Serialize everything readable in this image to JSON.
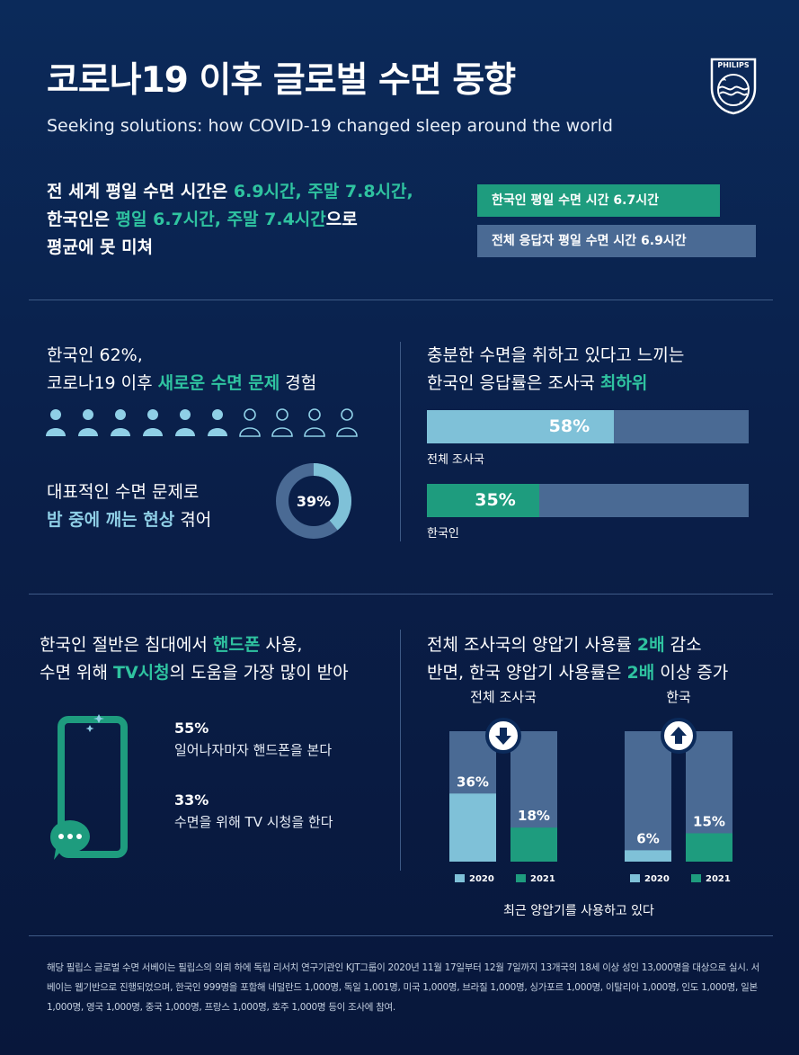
{
  "header": {
    "title": "코로나19 이후 글로벌 수면 동향",
    "subtitle": "Seeking solutions: how COVID-19 changed sleep around the world",
    "logo_text": "PHILIPS"
  },
  "section1": {
    "line1_a": "전 세계 평일 수면 시간은 ",
    "line1_b": "6.9시간, 주말 7.8시간,",
    "line2_a": "한국인은 ",
    "line2_b": "평일 6.7시간, 주말 7.4시간",
    "line2_c": "으로",
    "line3": "평균에 못 미쳐",
    "badge_korea": "한국인 평일 수면 시간  6.7시간",
    "badge_all": "전체 응답자 평일 수면 시간  6.9시간"
  },
  "section2_left": {
    "line1": "한국인 62%,",
    "line2_a": "코로나19 이후 ",
    "line2_b": "새로운 수면 문제",
    "line2_c": " 경험",
    "people_filled": 6,
    "people_total": 10,
    "problem_line1": "대표적인 수면 문제로",
    "problem_line2_a": "밤 중에 깨는 현상",
    "problem_line2_b": " 겪어",
    "donut_label": "39%",
    "donut_value": 39
  },
  "section2_right": {
    "line1": "충분한 수면을 취하고 있다고 느끼는",
    "line2_a": "한국인 응답률은 조사국 ",
    "line2_b": "최하위",
    "bars": [
      {
        "pct_label": "58%",
        "value": 58,
        "label": "전체 조사국",
        "color": "#7fc1d8"
      },
      {
        "pct_label": "35%",
        "value": 35,
        "label": "한국인",
        "color": "#1e9c7e"
      }
    ]
  },
  "section3_left": {
    "line1_a": "한국인 절반은 침대에서 ",
    "line1_b": "핸드폰",
    "line1_c": " 사용,",
    "line2_a": "수면 위해 ",
    "line2_b": "TV시청",
    "line2_c": "의 도움을 가장 많이 받아",
    "stats": [
      {
        "num": "55%",
        "label": "일어나자마자 핸드폰을 본다"
      },
      {
        "num": "33%",
        "label": "수면을 위해 TV 시청을 한다"
      }
    ]
  },
  "section3_right": {
    "line1_a": "전체 조사국의 양압기 사용률 ",
    "line1_b": "2배",
    "line1_c": " 감소",
    "line2_a": "반면, 한국 양압기 사용률은 ",
    "line2_b": "2배",
    "line2_c": " 이상 증가",
    "caption": "최근 양압기를 사용하고 있다"
  },
  "chart_data": {
    "type": "bar",
    "groups": [
      "전체 조사국",
      "한국"
    ],
    "categories": [
      "2020",
      "2021"
    ],
    "series": [
      {
        "name": "2020",
        "values": [
          36,
          6
        ]
      },
      {
        "name": "2021",
        "values": [
          18,
          15
        ]
      }
    ],
    "labels": [
      [
        "36%",
        "18%"
      ],
      [
        "6%",
        "15%"
      ]
    ],
    "ylim": [
      0,
      100
    ],
    "colors": {
      "2020": "#7fc1d8",
      "2021": "#1e9c7e",
      "track": "#4a6a94"
    }
  },
  "footer": {
    "text": "해당 필립스 글로벌 수면 서베이는 필립스의 의뢰 하에 독립 리서치 연구기관인 KJT그룹이 2020년 11월 17일부터 12월 7일까지 13개국의 18세 이상 성인 13,000명을 대상으로 실시. 서베이는 웹기반으로 진행되었으며, 한국인 999명을 포함해 네덜란드 1,000명, 독일 1,001명, 미국 1,000명, 브라질 1,000명, 싱가포르 1,000명, 이탈리아 1,000명, 인도 1,000명, 일본 1,000명, 영국 1,000명, 중국 1,000명, 프랑스 1,000명, 호주 1,000명 등이 조사에 참여."
  }
}
